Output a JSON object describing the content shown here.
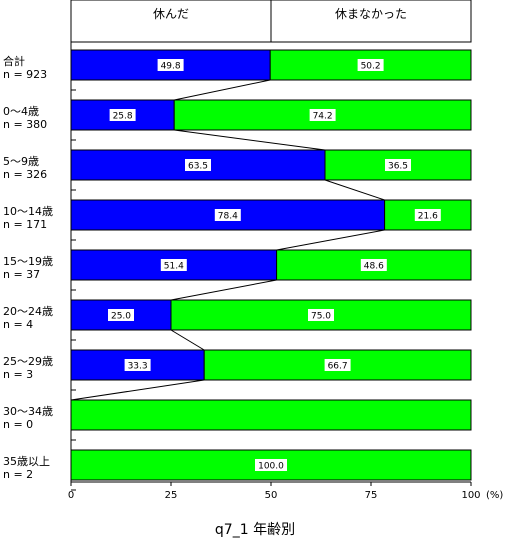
{
  "chart_data": {
    "type": "bar",
    "orientation": "horizontal",
    "stacked": "percent",
    "title": "q7_1 年齢別",
    "legend": [
      "休んだ",
      "休まなかった"
    ],
    "colors": {
      "休んだ": "#0000ff",
      "休まなかった": "#00ff00"
    },
    "xlim": [
      0,
      100
    ],
    "xticks": [
      "0",
      "25",
      "50",
      "75",
      "100"
    ],
    "x_unit": "(%)",
    "categories": [
      {
        "name": "合計",
        "n": "n = 923"
      },
      {
        "name": "0～4歳",
        "n": "n = 380"
      },
      {
        "name": "5～9歳",
        "n": "n = 326"
      },
      {
        "name": "10～14歳",
        "n": "n = 171"
      },
      {
        "name": "15～19歳",
        "n": "n = 37"
      },
      {
        "name": "20～24歳",
        "n": "n = 4"
      },
      {
        "name": "25～29歳",
        "n": "n = 3"
      },
      {
        "name": "30～34歳",
        "n": "n = 0"
      },
      {
        "name": "35歳以上",
        "n": "n = 2"
      }
    ],
    "series": [
      {
        "name": "休んだ",
        "values": [
          49.8,
          25.8,
          63.5,
          78.4,
          51.4,
          25.0,
          33.3,
          null,
          null
        ],
        "labels": [
          "49.8",
          "25.8",
          "63.5",
          "78.4",
          "51.4",
          "25.0",
          "33.3",
          "",
          ""
        ]
      },
      {
        "name": "休まなかった",
        "values": [
          50.2,
          74.2,
          36.5,
          21.6,
          48.6,
          75.0,
          66.7,
          null,
          100.0
        ],
        "labels": [
          "50.2",
          "74.2",
          "36.5",
          "21.6",
          "48.6",
          "75.0",
          "66.7",
          "",
          "100.0"
        ]
      }
    ],
    "category_rows": [
      {
        "blue": 49.8,
        "green": 50.2,
        "green_fill_full": false
      },
      {
        "blue": 25.8,
        "green": 74.2,
        "green_fill_full": false
      },
      {
        "blue": 63.5,
        "green": 36.5,
        "green_fill_full": false
      },
      {
        "blue": 78.4,
        "green": 21.6,
        "green_fill_full": false
      },
      {
        "blue": 51.4,
        "green": 48.6,
        "green_fill_full": false
      },
      {
        "blue": 25.0,
        "green": 75.0,
        "green_fill_full": false
      },
      {
        "blue": 33.3,
        "green": 66.7,
        "green_fill_full": false
      },
      {
        "blue": 0,
        "green": 100,
        "green_fill_full": true
      },
      {
        "blue": 0,
        "green": 100,
        "green_fill_full": true
      }
    ]
  }
}
